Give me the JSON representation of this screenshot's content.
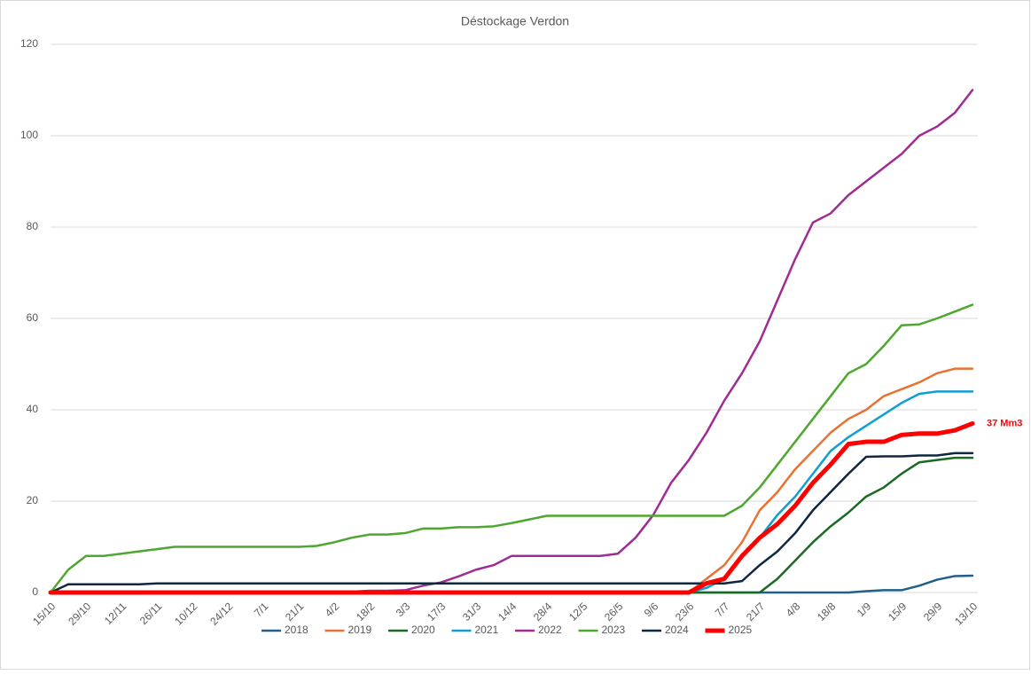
{
  "chart_data": {
    "type": "line",
    "title": "Déstockage Verdon",
    "categories": [
      "15/10",
      null,
      "29/10",
      null,
      "12/11",
      null,
      "26/11",
      null,
      "10/12",
      null,
      "24/12",
      null,
      "7/1",
      null,
      "21/1",
      null,
      "4/2",
      null,
      "18/2",
      null,
      "3/3",
      null,
      "17/3",
      null,
      "31/3",
      null,
      "14/4",
      null,
      "28/4",
      null,
      "12/5",
      null,
      "26/5",
      null,
      "9/6",
      null,
      "23/6",
      null,
      "7/7",
      null,
      "21/7",
      null,
      "4/8",
      null,
      "18/8",
      null,
      "1/9",
      null,
      "15/9",
      null,
      "29/9",
      null,
      "13/10"
    ],
    "ylim": [
      0,
      120
    ],
    "yticks": [
      0,
      20,
      40,
      60,
      80,
      100,
      120
    ],
    "grid": true,
    "legend": "bottom",
    "annotation": "37 Mm3",
    "series": [
      {
        "name": "2018",
        "color": "#215f8a",
        "values": [
          0,
          0,
          0,
          0,
          0,
          0,
          0,
          0,
          0,
          0,
          0,
          0,
          0,
          0,
          0,
          0,
          0,
          0,
          0,
          0,
          0,
          0,
          0,
          0,
          0,
          0,
          0,
          0,
          0,
          0,
          0,
          0,
          0,
          0,
          0,
          0,
          0,
          0,
          0,
          0,
          0,
          0,
          0,
          0,
          0,
          0,
          0.3,
          0.5,
          0.5,
          1.5,
          2.8,
          3.6,
          3.7
        ]
      },
      {
        "name": "2019",
        "color": "#e97132",
        "values": [
          0,
          0,
          0,
          0,
          0,
          0,
          0,
          0,
          0,
          0,
          0,
          0,
          0,
          0,
          0,
          0,
          0,
          0,
          0,
          0,
          0,
          0,
          0,
          0,
          0,
          0,
          0,
          0,
          0,
          0,
          0,
          0,
          0,
          0,
          0,
          0,
          0,
          3,
          6,
          11,
          18,
          22,
          27,
          31,
          35,
          38,
          40,
          43,
          44.5,
          46,
          48,
          49,
          49
        ]
      },
      {
        "name": "2020",
        "color": "#196b24",
        "values": [
          0,
          0,
          0,
          0,
          0,
          0,
          0,
          0,
          0,
          0,
          0,
          0,
          0,
          0,
          0,
          0,
          0,
          0,
          0,
          0,
          0,
          0,
          0,
          0,
          0,
          0,
          0,
          0,
          0,
          0,
          0,
          0,
          0,
          0,
          0,
          0,
          0,
          0,
          0,
          0,
          0,
          3,
          7,
          11,
          14.5,
          17.5,
          21,
          23,
          26,
          28.5,
          29,
          29.5,
          29.5
        ]
      },
      {
        "name": "2021",
        "color": "#0f9ed5",
        "values": [
          0,
          0,
          0,
          0,
          0,
          0,
          0,
          0,
          0,
          0,
          0,
          0,
          0,
          0,
          0,
          0,
          0,
          0,
          0,
          0,
          0,
          0,
          0,
          0,
          0,
          0,
          0,
          0,
          0,
          0,
          0,
          0,
          0,
          0,
          0,
          0,
          0,
          1,
          3,
          8,
          12,
          17,
          21,
          26,
          31,
          34,
          36.5,
          39,
          41.5,
          43.5,
          44,
          44,
          44
        ]
      },
      {
        "name": "2022",
        "color": "#a02b93",
        "values": [
          0,
          0,
          0,
          0,
          0,
          0,
          0,
          0,
          0,
          0,
          0,
          0,
          0,
          0,
          0,
          0,
          0,
          0.2,
          0.4,
          0.4,
          0.5,
          1.5,
          2.2,
          3.5,
          5,
          6,
          8,
          8,
          8,
          8,
          8,
          8,
          8.5,
          12,
          17,
          24,
          29,
          35,
          42,
          48,
          55,
          64,
          73,
          81,
          83,
          87,
          90,
          93,
          96,
          100,
          102,
          105,
          110
        ]
      },
      {
        "name": "2023",
        "color": "#4ea72e",
        "values": [
          0,
          5,
          8,
          8,
          8.5,
          9,
          9.5,
          10,
          10,
          10,
          10,
          10,
          10,
          10,
          10,
          10.2,
          11,
          12,
          12.7,
          12.7,
          13,
          14,
          14,
          14.3,
          14.3,
          14.5,
          15.2,
          16,
          16.8,
          16.8,
          16.8,
          16.8,
          16.8,
          16.8,
          16.8,
          16.8,
          16.8,
          16.8,
          16.8,
          19,
          23,
          28,
          33,
          38,
          43,
          48,
          50,
          54,
          58.5,
          58.7,
          60,
          61.5,
          63
        ]
      },
      {
        "name": "2024",
        "color": "#0e2841",
        "values": [
          0,
          1.8,
          1.8,
          1.8,
          1.8,
          1.8,
          2,
          2,
          2,
          2,
          2,
          2,
          2,
          2,
          2,
          2,
          2,
          2,
          2,
          2,
          2,
          2,
          2,
          2,
          2,
          2,
          2,
          2,
          2,
          2,
          2,
          2,
          2,
          2,
          2,
          2,
          2,
          2,
          2,
          2.5,
          6,
          9,
          13,
          18,
          22,
          26,
          29.7,
          29.8,
          29.8,
          30,
          30,
          30.5,
          30.5
        ]
      },
      {
        "name": "2025",
        "color": "#ff0000",
        "values": [
          0,
          0,
          0,
          0,
          0,
          0,
          0,
          0,
          0,
          0,
          0,
          0,
          0,
          0,
          0,
          0,
          0,
          0,
          0,
          0,
          0,
          0,
          0,
          0,
          0,
          0,
          0,
          0,
          0,
          0,
          0,
          0,
          0,
          0,
          0,
          0,
          0,
          2,
          3,
          8,
          12,
          15,
          19,
          24,
          28,
          32.5,
          33,
          33,
          34.5,
          34.8,
          34.8,
          35.5,
          37
        ]
      }
    ]
  }
}
